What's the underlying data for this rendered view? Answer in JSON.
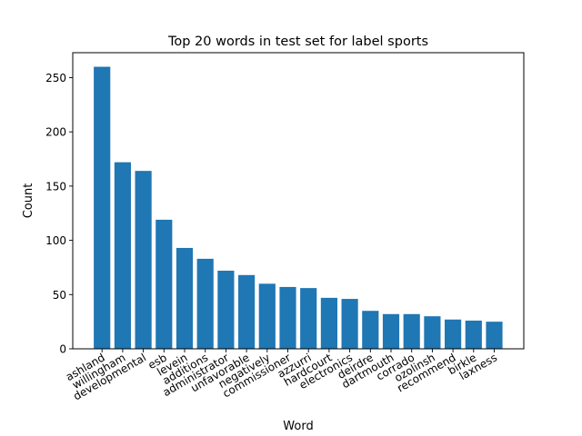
{
  "chart_data": {
    "type": "bar",
    "title": "Top 20 words in test set for label sports",
    "xlabel": "Word",
    "ylabel": "Count",
    "categories": [
      "ashland",
      "willingham",
      "developmental",
      "esb",
      "levein",
      "additions",
      "administrator",
      "unfavorable",
      "negatively",
      "commissioner",
      "azzurri",
      "hardcourt",
      "electronics",
      "deirdre",
      "dartmouth",
      "corrado",
      "ozolinsh",
      "recommend",
      "birkle",
      "laxness"
    ],
    "values": [
      260,
      172,
      164,
      119,
      93,
      83,
      72,
      68,
      60,
      57,
      56,
      47,
      46,
      35,
      32,
      32,
      30,
      27,
      26,
      25
    ],
    "ylim": [
      0,
      273
    ],
    "yticks": [
      0,
      50,
      100,
      150,
      200,
      250
    ],
    "grid": false,
    "legend": "none",
    "bar_color": "#1f77b4"
  }
}
